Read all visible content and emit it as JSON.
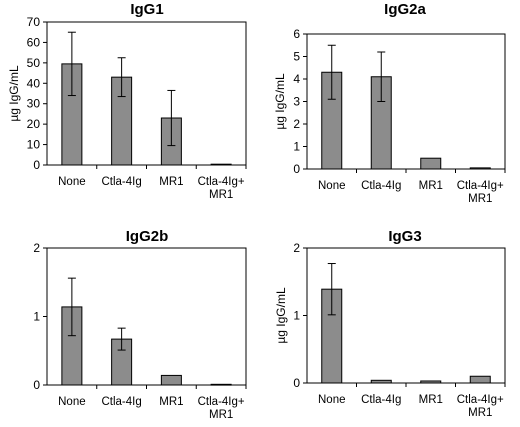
{
  "chart_data": [
    {
      "type": "bar",
      "title": "IgG1",
      "ylabel": "µg IgG/mL",
      "ylim": [
        0,
        70
      ],
      "yticks": [
        "0",
        "10",
        "20",
        "30",
        "40",
        "50",
        "60",
        "70"
      ],
      "categories": [
        [
          "None"
        ],
        [
          "Ctla-4Ig"
        ],
        [
          "MR1"
        ],
        [
          "Ctla-4Ig+",
          "MR1"
        ]
      ],
      "values": [
        49.5,
        43,
        23,
        0.4
      ],
      "errors": [
        15.5,
        9.5,
        13.5,
        null
      ]
    },
    {
      "type": "bar",
      "title": "IgG2a",
      "ylabel": "µg IgG/mL",
      "ylim": [
        0,
        6
      ],
      "yticks": [
        "0",
        "1",
        "2",
        "3",
        "4",
        "5",
        "6"
      ],
      "categories": [
        [
          "None"
        ],
        [
          "Ctla-4Ig"
        ],
        [
          "MR1"
        ],
        [
          "Ctla-4Ig+",
          "MR1"
        ]
      ],
      "values": [
        4.3,
        4.1,
        0.48,
        0.05
      ],
      "errors": [
        1.2,
        1.1,
        null,
        null
      ]
    },
    {
      "type": "bar",
      "title": "IgG2b",
      "ylabel": "",
      "ylim": [
        0,
        2
      ],
      "yticks": [
        "0",
        "1",
        "2"
      ],
      "categories": [
        [
          "None"
        ],
        [
          "Ctla-4Ig"
        ],
        [
          "MR1"
        ],
        [
          "Ctla-4Ig+",
          "MR1"
        ]
      ],
      "values": [
        1.14,
        0.67,
        0.14,
        0.01
      ],
      "errors": [
        0.42,
        0.16,
        null,
        null
      ]
    },
    {
      "type": "bar",
      "title": "IgG3",
      "ylabel": "µg IgG/mL",
      "ylim": [
        0,
        2
      ],
      "yticks": [
        "0",
        "1",
        "2"
      ],
      "categories": [
        [
          "None"
        ],
        [
          "Ctla-4Ig"
        ],
        [
          "MR1"
        ],
        [
          "Ctla-4Ig+",
          "MR1"
        ]
      ],
      "values": [
        1.39,
        0.04,
        0.03,
        0.1
      ],
      "errors": [
        0.38,
        null,
        null,
        null
      ]
    }
  ]
}
